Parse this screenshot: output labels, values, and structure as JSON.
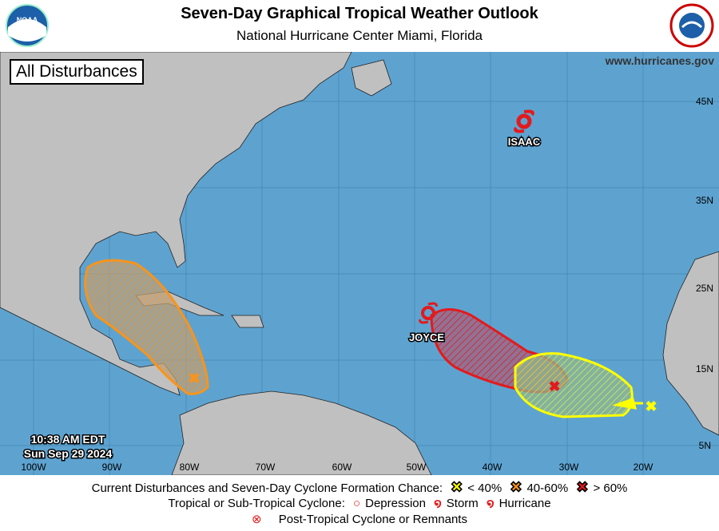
{
  "header": {
    "title": "Seven-Day Graphical Tropical Weather Outlook",
    "subtitle": "National Hurricane Center  Miami, Florida",
    "left_logo": "NOAA",
    "right_logo": "NATIONAL WEATHER SERVICE"
  },
  "map": {
    "view_label": "All Disturbances",
    "website": "www.hurricanes.gov",
    "timestamp_time": "10:38 AM EDT",
    "timestamp_date": "Sun Sep 29 2024",
    "lon_labels": [
      "100W",
      "90W",
      "80W",
      "70W",
      "60W",
      "50W",
      "40W",
      "30W",
      "20W"
    ],
    "lat_labels": [
      "45N",
      "35N",
      "25N",
      "15N",
      "5N"
    ],
    "storms": [
      {
        "name": "ISAAC",
        "type": "Hurricane"
      },
      {
        "name": "JOYCE",
        "type": "Storm"
      }
    ],
    "disturbances": [
      {
        "region": "Western Caribbean / Gulf of Mexico",
        "chance": "40-60%",
        "color": "#f7941d"
      },
      {
        "region": "Central Tropical Atlantic",
        "chance": "> 60%",
        "color": "#e31a1c"
      },
      {
        "region": "Eastern Tropical Atlantic",
        "chance": "< 40%",
        "color": "#ffff00"
      }
    ],
    "colors": {
      "ocean": "#5ea3d0",
      "land": "#c0c0c0"
    }
  },
  "legend": {
    "row1_label": "Current Disturbances and Seven-Day Cyclone Formation Chance:",
    "low": "< 40%",
    "med": "40-60%",
    "high": "> 60%",
    "row2_label": "Tropical or Sub-Tropical Cyclone:",
    "depression": "Depression",
    "storm": "Storm",
    "hurricane": "Hurricane",
    "post_tropical": "Post-Tropical Cyclone or Remnants"
  }
}
